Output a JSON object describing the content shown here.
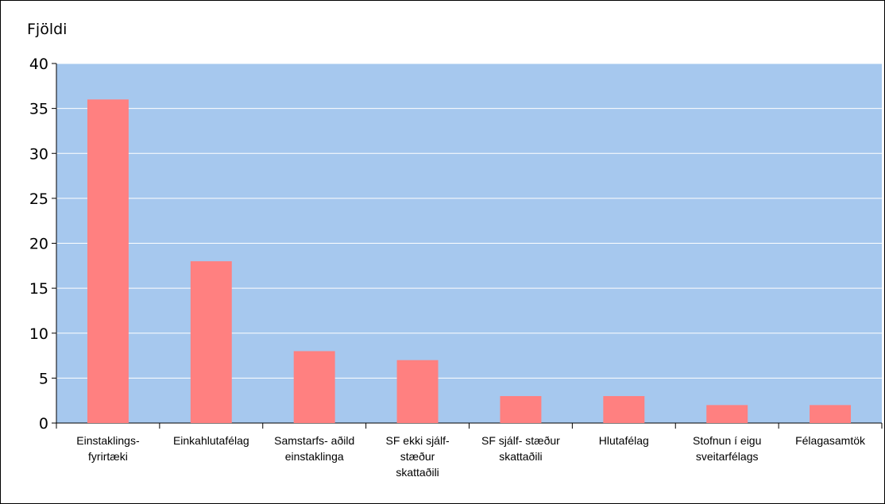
{
  "chart_data": {
    "type": "bar",
    "title": "",
    "ylabel": "Fjöldi",
    "xlabel": "",
    "ylim": [
      0,
      40
    ],
    "yticks": [
      0,
      5,
      10,
      15,
      20,
      25,
      30,
      35,
      40
    ],
    "grid": true,
    "legend": "none",
    "categories": [
      [
        "Einstaklings-",
        "fyrirtæki"
      ],
      [
        "Einkahlutafélag"
      ],
      [
        "Samstarfs- aðild",
        "einstaklinga"
      ],
      [
        "SF ekki sjálf-",
        "stæður",
        "skattaðili"
      ],
      [
        "SF sjálf- stæður",
        "skattaðili"
      ],
      [
        "Hlutafélag"
      ],
      [
        "Stofnun í eigu",
        "sveitarfélags"
      ],
      [
        "Félagasamtök"
      ]
    ],
    "values": [
      36,
      18,
      8,
      7,
      3,
      3,
      2,
      2
    ],
    "colors": {
      "plot_background": "#A6C8EE",
      "bar": "#FF8080",
      "gridline": "#FFFFFF",
      "axis": "#000000"
    }
  }
}
